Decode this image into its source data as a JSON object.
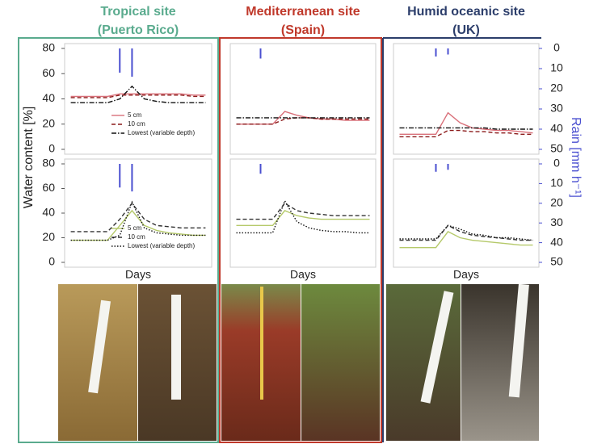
{
  "chart_data": [
    {
      "type": "line",
      "title": "Tropical site",
      "subtitle": "(Puerto Rico)",
      "title_color": "#5aab8e",
      "ylabel": "Water content [%]",
      "categories": [
        null,
        null,
        null,
        null,
        null,
        null,
        null,
        null,
        null,
        null,
        null,
        null
      ],
      "ylim": [
        0,
        80
      ],
      "yticks": [
        0,
        20,
        40,
        60,
        80
      ],
      "y2lim": [
        0,
        50
      ],
      "legend": "bottom",
      "series": [
        {
          "name": "5 cm",
          "color": "#d9707a",
          "style": "solid",
          "values": [
            42,
            42,
            42,
            42,
            44,
            44,
            44,
            44,
            44,
            44,
            43,
            43
          ]
        },
        {
          "name": "10 cm",
          "color": "#8b1a1a",
          "style": "dashed",
          "values": [
            41,
            41,
            41,
            41,
            43,
            43,
            43,
            43,
            43,
            43,
            42,
            42
          ]
        },
        {
          "name": "Lowest (variable depth)",
          "color": "#111111",
          "style": "dashdot",
          "values": [
            37,
            37,
            37,
            37,
            40,
            50,
            40,
            38,
            37,
            37,
            37,
            37
          ]
        },
        {
          "color": "#4a4fd0",
          "axis": "y2",
          "values": [
            null,
            null,
            null,
            null,
            12,
            14,
            null,
            null,
            null,
            null,
            null,
            null
          ]
        }
      ]
    },
    {
      "type": "line",
      "title": "Mediterranean site",
      "subtitle": "(Spain)",
      "title_color": "#c0392b",
      "categories": [
        null,
        null,
        null,
        null,
        null,
        null,
        null,
        null,
        null,
        null,
        null,
        null
      ],
      "ylim": [
        0,
        80
      ],
      "y2lim": [
        0,
        50
      ],
      "series": [
        {
          "color": "#d9707a",
          "style": "solid",
          "values": [
            20,
            20,
            20,
            20,
            30,
            27,
            25,
            24,
            24,
            23,
            23,
            23
          ]
        },
        {
          "color": "#8b1a1a",
          "style": "dashed",
          "values": [
            20,
            20,
            20,
            20,
            24,
            25,
            25,
            24,
            24,
            24,
            24,
            24
          ]
        },
        {
          "color": "#111111",
          "style": "dashdot",
          "values": [
            25,
            25,
            25,
            25,
            25,
            25,
            25,
            25,
            25,
            25,
            25,
            25
          ]
        },
        {
          "color": "#4a4fd0",
          "axis": "y2",
          "values": [
            null,
            null,
            5,
            null,
            null,
            null,
            null,
            null,
            null,
            null,
            null,
            null
          ]
        }
      ]
    },
    {
      "type": "line",
      "title": "Humid oceanic site",
      "subtitle": "(UK)",
      "title_color": "#2c3e6b",
      "y2label": "Rain [mm h⁻¹]",
      "categories": [
        null,
        null,
        null,
        null,
        null,
        null,
        null,
        null,
        null,
        null,
        null,
        null
      ],
      "ylim": [
        0,
        80
      ],
      "y2lim": [
        0,
        50
      ],
      "y2ticks": [
        0,
        10,
        20,
        30,
        40,
        50
      ],
      "series": [
        {
          "color": "#d9707a",
          "style": "solid",
          "values": [
            12,
            12,
            12,
            12,
            29,
            21,
            17,
            16,
            15,
            15,
            14,
            13
          ]
        },
        {
          "color": "#8b1a1a",
          "style": "dashed",
          "values": [
            10,
            10,
            10,
            10,
            15,
            15,
            14,
            14,
            13,
            13,
            12,
            12
          ]
        },
        {
          "color": "#111111",
          "style": "dashdot",
          "values": [
            17,
            17,
            17,
            17,
            17,
            17,
            17,
            17,
            16,
            16,
            16,
            16
          ]
        },
        {
          "color": "#4a4fd0",
          "axis": "y2",
          "values": [
            null,
            null,
            null,
            4,
            3,
            null,
            null,
            null,
            null,
            null,
            null,
            null
          ]
        }
      ]
    },
    {
      "type": "line",
      "xlabel": "Days",
      "categories": [
        null,
        null,
        null,
        null,
        null,
        null,
        null,
        null,
        null,
        null,
        null,
        null
      ],
      "ylim": [
        0,
        80
      ],
      "yticks": [
        0,
        20,
        40,
        60,
        80
      ],
      "y2lim": [
        0,
        50
      ],
      "legend": "bottom",
      "series": [
        {
          "name": "5 cm",
          "color": "#b5c96a",
          "style": "solid",
          "values": [
            18,
            18,
            18,
            18,
            30,
            42,
            30,
            26,
            24,
            23,
            22,
            22
          ]
        },
        {
          "name": "10 cm",
          "color": "#333333",
          "style": "dashed",
          "values": [
            25,
            25,
            25,
            25,
            35,
            48,
            35,
            30,
            29,
            28,
            28,
            28
          ]
        },
        {
          "name": "Lowest (variable depth)",
          "color": "#111111",
          "style": "dotted",
          "values": [
            18,
            18,
            18,
            18,
            22,
            49,
            28,
            24,
            23,
            22,
            22,
            22
          ]
        },
        {
          "color": "#4a4fd0",
          "axis": "y2",
          "values": [
            null,
            null,
            null,
            null,
            12,
            14,
            null,
            null,
            null,
            null,
            null,
            null
          ]
        }
      ]
    },
    {
      "type": "line",
      "xlabel": "Days",
      "categories": [
        null,
        null,
        null,
        null,
        null,
        null,
        null,
        null,
        null,
        null,
        null,
        null
      ],
      "ylim": [
        0,
        80
      ],
      "y2lim": [
        0,
        50
      ],
      "series": [
        {
          "color": "#b5c96a",
          "style": "solid",
          "values": [
            30,
            30,
            30,
            30,
            42,
            38,
            36,
            35,
            35,
            35,
            35,
            35
          ]
        },
        {
          "color": "#333333",
          "style": "dashed",
          "values": [
            35,
            35,
            35,
            35,
            48,
            42,
            40,
            39,
            38,
            38,
            38,
            38
          ]
        },
        {
          "color": "#111111",
          "style": "dotted",
          "values": [
            24,
            24,
            24,
            24,
            50,
            33,
            28,
            26,
            25,
            25,
            24,
            24
          ]
        },
        {
          "color": "#4a4fd0",
          "axis": "y2",
          "values": [
            null,
            null,
            5,
            null,
            null,
            null,
            null,
            null,
            null,
            null,
            null,
            null
          ]
        }
      ]
    },
    {
      "type": "line",
      "xlabel": "Days",
      "categories": [
        null,
        null,
        null,
        null,
        null,
        null,
        null,
        null,
        null,
        null,
        null,
        null
      ],
      "ylim": [
        0,
        80
      ],
      "y2lim": [
        0,
        50
      ],
      "y2ticks": [
        0,
        10,
        20,
        30,
        40,
        50
      ],
      "series": [
        {
          "color": "#b5c96a",
          "style": "solid",
          "values": [
            12,
            12,
            12,
            12,
            25,
            20,
            18,
            17,
            16,
            15,
            14,
            14
          ]
        },
        {
          "color": "#333333",
          "style": "dashed",
          "values": [
            18,
            18,
            18,
            18,
            30,
            25,
            22,
            21,
            20,
            19,
            18,
            18
          ]
        },
        {
          "color": "#111111",
          "style": "dotted",
          "values": [
            19,
            19,
            19,
            19,
            30,
            27,
            23,
            22,
            20,
            20,
            19,
            18
          ]
        },
        {
          "color": "#4a4fd0",
          "axis": "y2",
          "values": [
            null,
            null,
            null,
            4,
            3,
            null,
            null,
            null,
            null,
            null,
            null,
            null
          ]
        }
      ]
    }
  ]
}
